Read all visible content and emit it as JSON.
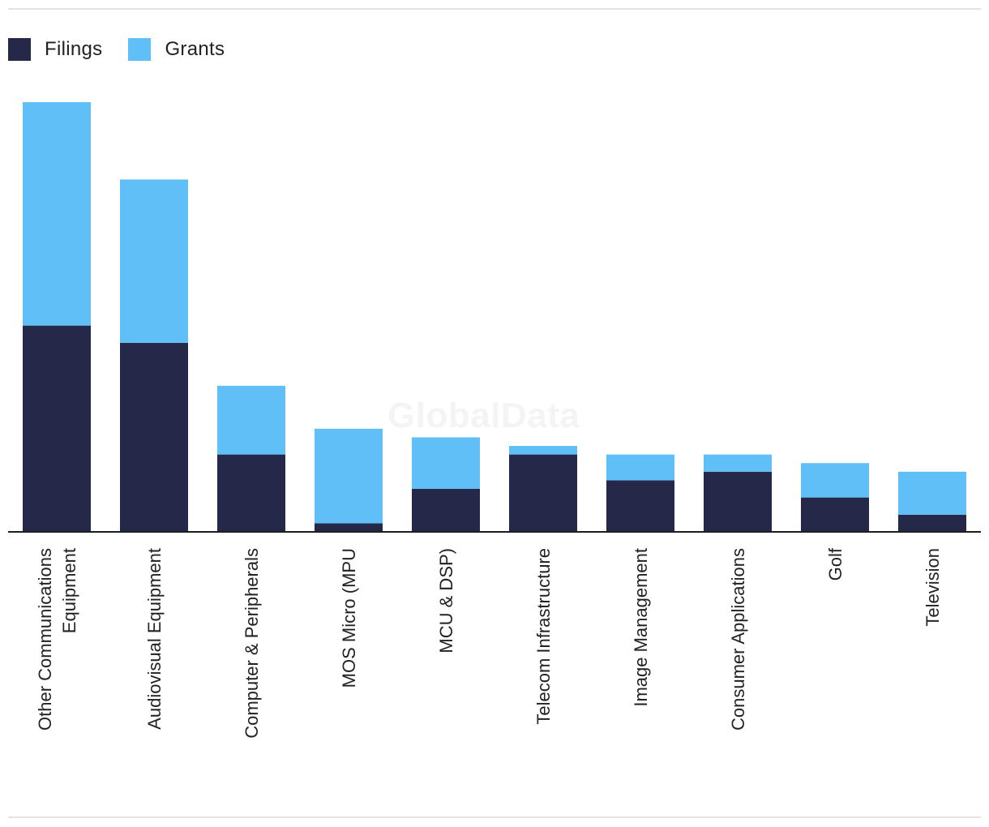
{
  "legend": {
    "items": [
      {
        "label": "Filings",
        "color": "#26284a"
      },
      {
        "label": "Grants",
        "color": "#61bff8"
      }
    ]
  },
  "watermark": "GlobalData",
  "chart_data": {
    "type": "bar",
    "stacked": true,
    "title": "",
    "xlabel": "",
    "ylabel": "",
    "ylim": [
      0,
      100
    ],
    "grid": false,
    "legend_position": "top-left",
    "categories": [
      [
        "Other Communications",
        "Equipment"
      ],
      [
        "Audiovisual Equipment"
      ],
      [
        "Computer & Peripherals"
      ],
      [
        "MOS Micro (MPU"
      ],
      [
        "MCU & DSP)"
      ],
      [
        "Telecom Infrastructure"
      ],
      [
        "Image Management"
      ],
      [
        "Consumer Applications"
      ],
      [
        "Golf"
      ],
      [
        "Television"
      ]
    ],
    "series": [
      {
        "name": "Filings",
        "color": "#26284a",
        "values": [
          48,
          44,
          18,
          2,
          10,
          18,
          12,
          14,
          8,
          4
        ]
      },
      {
        "name": "Grants",
        "color": "#61bff8",
        "values": [
          52,
          38,
          16,
          22,
          12,
          2,
          6,
          4,
          8,
          10
        ]
      }
    ]
  }
}
